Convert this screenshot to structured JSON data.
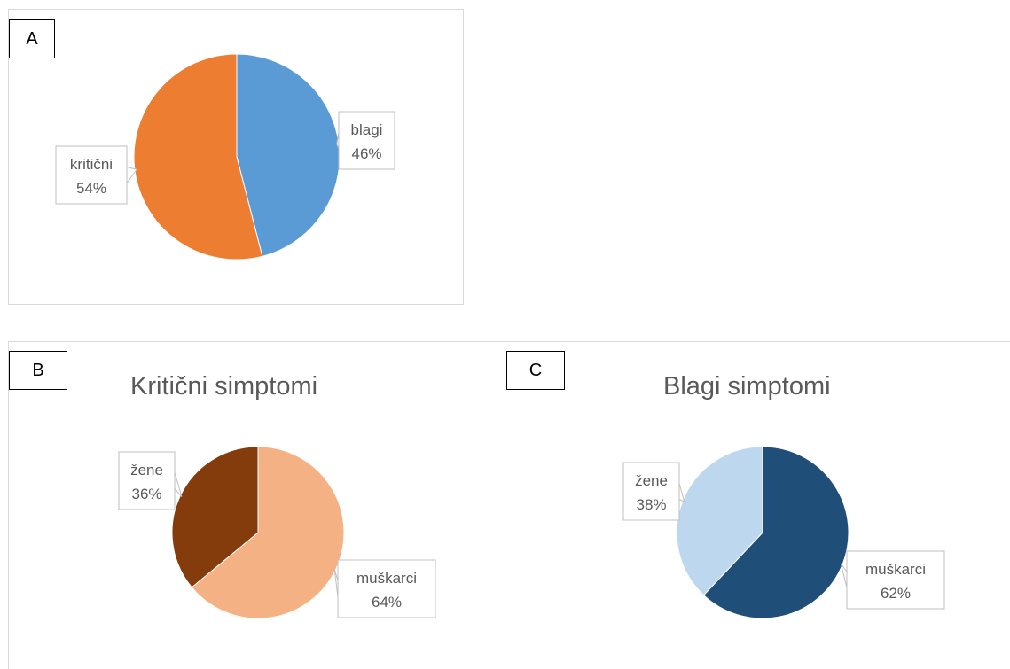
{
  "panels": {
    "a": {
      "letter": "A"
    },
    "b": {
      "letter": "B"
    },
    "c": {
      "letter": "C"
    }
  },
  "chart_data": [
    {
      "type": "pie",
      "title": "",
      "slices": [
        {
          "label": "blagi",
          "value": 46,
          "value_label": "46%",
          "color": "#5b9bd5"
        },
        {
          "label": "kritični",
          "value": 54,
          "value_label": "54%",
          "color": "#ed7d31"
        }
      ]
    },
    {
      "type": "pie",
      "title": "Kritični simptomi",
      "slices": [
        {
          "label": "muškarci",
          "value": 64,
          "value_label": "64%",
          "color": "#f4b183"
        },
        {
          "label": "žene",
          "value": 36,
          "value_label": "36%",
          "color": "#843c0c"
        }
      ]
    },
    {
      "type": "pie",
      "title": "Blagi simptomi",
      "slices": [
        {
          "label": "muškarci",
          "value": 62,
          "value_label": "62%",
          "color": "#1f4e79"
        },
        {
          "label": "žene",
          "value": 38,
          "value_label": "38%",
          "color": "#bdd7ee"
        }
      ]
    }
  ]
}
